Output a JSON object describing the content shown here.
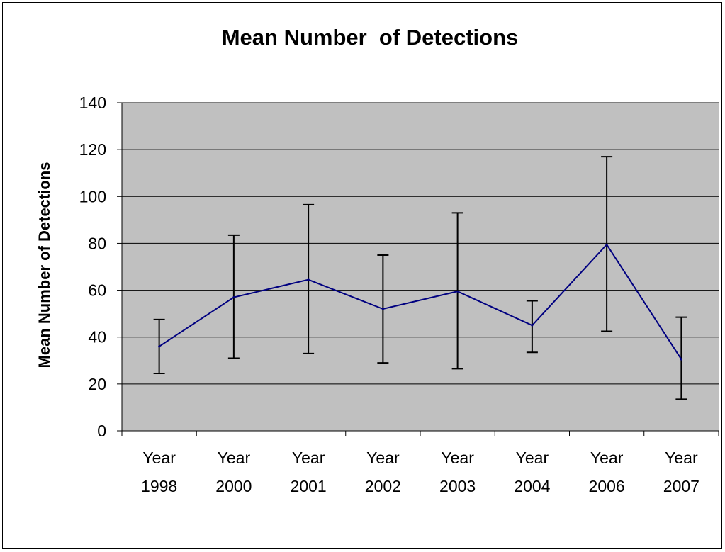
{
  "chart_data": {
    "type": "line",
    "title": "Mean Number  of Detections",
    "xlabel": "",
    "ylabel": "Mean Number of Detections",
    "categories": [
      [
        "Year",
        "1998"
      ],
      [
        "Year",
        "2000"
      ],
      [
        "Year",
        "2001"
      ],
      [
        "Year",
        "2002"
      ],
      [
        "Year",
        "2003"
      ],
      [
        "Year",
        "2004"
      ],
      [
        "Year",
        "2006"
      ],
      [
        "Year",
        "2007"
      ]
    ],
    "series": [
      {
        "values": [
          36,
          57,
          64.5,
          52,
          59.5,
          45,
          79.5,
          30.5
        ],
        "error_low": [
          24.5,
          31,
          33,
          29,
          26.5,
          33.5,
          42.5,
          13.5
        ],
        "error_high": [
          47.5,
          83.5,
          96.5,
          75,
          93,
          55.5,
          117,
          48.5
        ]
      }
    ],
    "ylim": [
      0,
      140
    ],
    "yticks": [
      0,
      20,
      40,
      60,
      80,
      100,
      120,
      140
    ],
    "grid": true,
    "legend": "none",
    "colors": {
      "plot_background": "#c0c0c0",
      "line": "#000080",
      "error_bars": "#000000",
      "gridlines": "#000000"
    }
  }
}
